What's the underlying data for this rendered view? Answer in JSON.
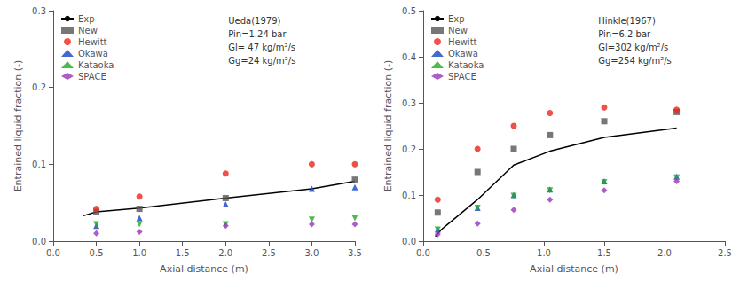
{
  "chart_data": [
    {
      "type": "scatter",
      "annotations": [
        "Ueda(1979)",
        "Pin=1.24 bar",
        "Gl= 47 kg/m²/s",
        "Gg=24 kg/m²/s"
      ],
      "xlabel": "Axial distance (m)",
      "ylabel": "Entrained liquid fraction (-)",
      "xlim": [
        0.0,
        3.5
      ],
      "ylim": [
        0.0,
        0.3
      ],
      "xticks": [
        {
          "value": 0.0,
          "label": "0.0"
        },
        0.5,
        {
          "value": 1.0,
          "label": "1.0"
        },
        1.5,
        {
          "value": 2.0,
          "label": "2.0"
        },
        2.5,
        {
          "value": 3.0,
          "label": "3.0"
        },
        3.5
      ],
      "yticks": [
        {
          "value": 0.0,
          "label": "0.0"
        },
        0.1,
        0.2,
        0.3
      ],
      "grid": false,
      "legend": "upper left",
      "series": [
        {
          "name": "Exp",
          "type": "line",
          "color": "#000000",
          "line_style": "solid",
          "x": [
            0.35,
            0.5,
            1.0,
            2.0,
            3.0,
            3.5
          ],
          "values": [
            0.033,
            0.038,
            0.043,
            0.056,
            0.068,
            0.078
          ]
        },
        {
          "name": "New",
          "type": "scatter",
          "color": "#555555",
          "marker": "square",
          "x": [
            0.5,
            1.0,
            2.0,
            3.5
          ],
          "values": [
            0.038,
            0.042,
            0.056,
            0.08
          ]
        },
        {
          "name": "Hewitt",
          "type": "scatter",
          "color": "#e8251a",
          "marker": "circle",
          "x": [
            0.5,
            1.0,
            2.0,
            3.0,
            3.5
          ],
          "values": [
            0.042,
            0.058,
            0.088,
            0.1,
            0.1
          ]
        },
        {
          "name": "Okawa",
          "type": "scatter",
          "color": "#1144cc",
          "marker": "triangle-up",
          "x": [
            0.5,
            1.0,
            2.0,
            3.0,
            3.5
          ],
          "values": [
            0.02,
            0.03,
            0.048,
            0.068,
            0.07
          ]
        },
        {
          "name": "Kataoka",
          "type": "scatter",
          "color": "#22aa22",
          "marker": "triangle-down",
          "x": [
            0.5,
            1.0,
            2.0,
            3.0,
            3.5
          ],
          "values": [
            0.022,
            0.022,
            0.022,
            0.028,
            0.03
          ]
        },
        {
          "name": "SPACE",
          "type": "scatter",
          "color": "#9933bb",
          "marker": "diamond",
          "x": [
            0.5,
            1.0,
            2.0,
            3.0,
            3.5
          ],
          "values": [
            0.01,
            0.012,
            0.02,
            0.022,
            0.022
          ]
        }
      ]
    },
    {
      "type": "scatter",
      "annotations": [
        "Hinkle(1967)",
        "Pin=6.2 bar",
        "Gl=302 kg/m²/s",
        "Gg=254 kg/m²/s"
      ],
      "xlabel": "Axial distance (m)",
      "ylabel": "Entrained liquid fraction (-)",
      "xlim": [
        0.0,
        2.5
      ],
      "ylim": [
        0.0,
        0.5
      ],
      "xticks": [
        {
          "value": 0.0,
          "label": "0.0"
        },
        0.5,
        {
          "value": 1.0,
          "label": "1.0"
        },
        1.5,
        {
          "value": 2.0,
          "label": "2.0"
        },
        2.5
      ],
      "yticks": [
        {
          "value": 0.0,
          "label": "0.0"
        },
        0.1,
        0.2,
        0.3,
        0.4,
        0.5
      ],
      "grid": false,
      "legend": "upper left",
      "series": [
        {
          "name": "Exp",
          "type": "line",
          "color": "#000000",
          "line_style": "solid",
          "x": [
            0.1,
            0.15,
            0.45,
            0.75,
            1.05,
            1.5,
            2.1
          ],
          "values": [
            0.01,
            0.025,
            0.09,
            0.165,
            0.195,
            0.225,
            0.245
          ]
        },
        {
          "name": "New",
          "type": "scatter",
          "color": "#555555",
          "marker": "square",
          "x": [
            0.12,
            0.45,
            0.75,
            1.05,
            1.5,
            2.1
          ],
          "values": [
            0.062,
            0.15,
            0.2,
            0.23,
            0.26,
            0.28
          ]
        },
        {
          "name": "Hewitt",
          "type": "scatter",
          "color": "#e8251a",
          "marker": "circle",
          "x": [
            0.12,
            0.45,
            0.75,
            1.05,
            1.5,
            2.1
          ],
          "values": [
            0.09,
            0.2,
            0.25,
            0.278,
            0.29,
            0.285
          ]
        },
        {
          "name": "Okawa",
          "type": "scatter",
          "color": "#1144cc",
          "marker": "triangle-up",
          "x": [
            0.12,
            0.45,
            0.75,
            1.05,
            1.5,
            2.1
          ],
          "values": [
            0.025,
            0.072,
            0.1,
            0.112,
            0.13,
            0.14
          ]
        },
        {
          "name": "Kataoka",
          "type": "scatter",
          "color": "#22aa22",
          "marker": "triangle-down",
          "x": [
            0.12,
            0.45,
            0.75,
            1.05,
            1.5,
            2.1
          ],
          "values": [
            0.025,
            0.072,
            0.098,
            0.11,
            0.128,
            0.138
          ]
        },
        {
          "name": "SPACE",
          "type": "scatter",
          "color": "#9933bb",
          "marker": "diamond",
          "x": [
            0.12,
            0.45,
            0.75,
            1.05,
            1.5,
            2.1
          ],
          "values": [
            0.015,
            0.038,
            0.068,
            0.09,
            0.11,
            0.13
          ]
        }
      ]
    }
  ]
}
